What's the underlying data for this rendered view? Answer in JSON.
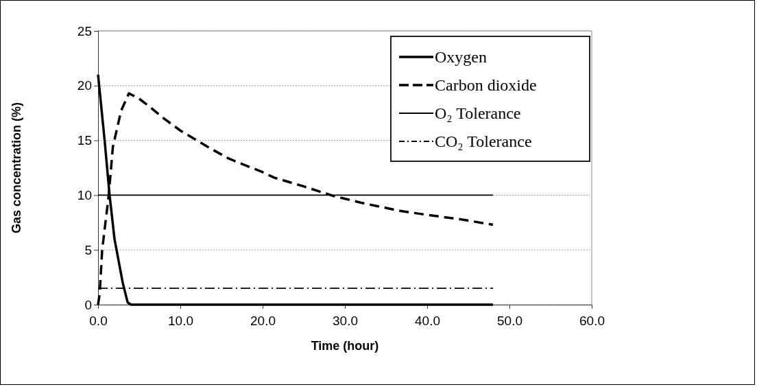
{
  "chart_data": {
    "type": "line",
    "xlabel": "Time (hour)",
    "ylabel": "Gas concentration (%)",
    "xlim": [
      0,
      60
    ],
    "xticks": [
      {
        "value": 0,
        "label": "0.0"
      },
      {
        "value": 10,
        "label": "10.0"
      },
      {
        "value": 20,
        "label": "20.0"
      },
      {
        "value": 30,
        "label": "30.0"
      },
      {
        "value": 40,
        "label": "40.0"
      },
      {
        "value": 50,
        "label": "50.0"
      },
      {
        "value": 60,
        "label": "60.0"
      }
    ],
    "ylim": [
      0,
      25
    ],
    "yticks": [
      0,
      5,
      10,
      15,
      20,
      25
    ],
    "grid": "y",
    "legend": "top right",
    "marker": "none",
    "series": [
      {
        "name": "Oxygen",
        "color": "#000000",
        "line_style": "solid",
        "x": [
          0,
          0.2,
          0.8,
          1.4,
          2.0,
          3.0,
          3.6,
          4,
          48
        ],
        "values": [
          21,
          19.5,
          15,
          10,
          6,
          2,
          0.2,
          0,
          0
        ]
      },
      {
        "name": "Carbon dioxide",
        "color": "#000000",
        "line_style": "dashed",
        "x": [
          0,
          0.2,
          0.5,
          1.3,
          1.8,
          2.8,
          3.75,
          5,
          6.4,
          8,
          10,
          13.8,
          16,
          20,
          21.4,
          25,
          28.5,
          32,
          36.8,
          40,
          44,
          48
        ],
        "values": [
          0,
          1,
          5,
          10,
          14.4,
          17.7,
          19.3,
          18.8,
          18,
          17,
          15.9,
          14.2,
          13.3,
          12.1,
          11.6,
          10.8,
          9.95,
          9.3,
          8.55,
          8.2,
          7.8,
          7.3
        ]
      },
      {
        "name": "O₂ Tolerance",
        "color": "#000000",
        "line_style": "solid",
        "x": [
          0,
          48
        ],
        "values": [
          10,
          10
        ]
      },
      {
        "name": "CO₂ Tolerance",
        "color": "#000000",
        "line_style": "dashdot",
        "x": [
          0,
          48
        ],
        "values": [
          1.5,
          1.5
        ]
      }
    ]
  }
}
